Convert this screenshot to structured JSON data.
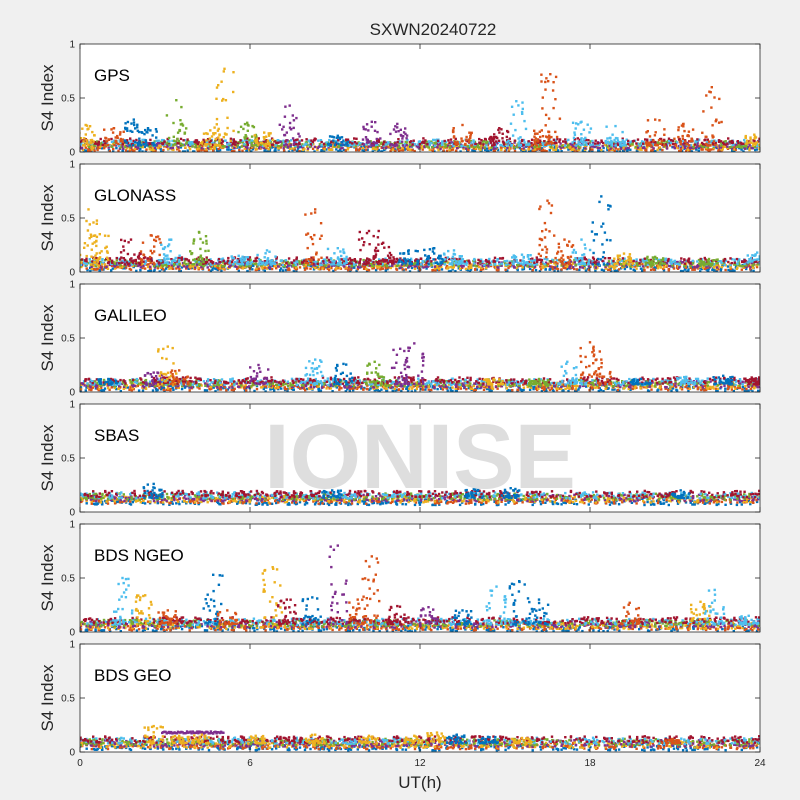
{
  "chart_data": {
    "type": "scatter",
    "title": "SXWN20240722",
    "xlabel": "UT(h)",
    "ylabel": "S4 Index",
    "xlim": [
      0,
      24
    ],
    "ylim": [
      0,
      1
    ],
    "xticks": [
      "0",
      "6",
      "12",
      "18",
      "24"
    ],
    "yticks": [
      "0",
      "0.5",
      "1"
    ],
    "watermark": "IONISE",
    "series_colors": [
      "#0072BD",
      "#D95319",
      "#EDB120",
      "#7E2F8E",
      "#77AC30",
      "#4DBEEE",
      "#A2142F"
    ],
    "panels": [
      {
        "name": "GPS",
        "baseline": 0.06,
        "spikes": [
          [
            0.2,
            0.25,
            2
          ],
          [
            1.2,
            0.22,
            1
          ],
          [
            1.9,
            0.3,
            0
          ],
          [
            2.4,
            0.22,
            0
          ],
          [
            3.4,
            0.48,
            4
          ],
          [
            4.6,
            0.2,
            2
          ],
          [
            5.1,
            0.77,
            2
          ],
          [
            5.9,
            0.27,
            4
          ],
          [
            6.5,
            0.18,
            2
          ],
          [
            7.4,
            0.43,
            3
          ],
          [
            9.1,
            0.15,
            0
          ],
          [
            10.3,
            0.28,
            3
          ],
          [
            11.2,
            0.26,
            3
          ],
          [
            13.5,
            0.25,
            1
          ],
          [
            14.8,
            0.22,
            6
          ],
          [
            15.4,
            0.47,
            5
          ],
          [
            16.3,
            0.2,
            1
          ],
          [
            16.6,
            0.72,
            1
          ],
          [
            17.7,
            0.28,
            5
          ],
          [
            18.9,
            0.24,
            5
          ],
          [
            20.3,
            0.3,
            1
          ],
          [
            21.3,
            0.26,
            1
          ],
          [
            22.3,
            0.6,
            1
          ],
          [
            23.8,
            0.16,
            2
          ]
        ]
      },
      {
        "name": "GLONASS",
        "baseline": 0.07,
        "spikes": [
          [
            0.3,
            0.58,
            2
          ],
          [
            0.7,
            0.35,
            2
          ],
          [
            1.8,
            0.3,
            6
          ],
          [
            2.5,
            0.34,
            1
          ],
          [
            3.2,
            0.3,
            5
          ],
          [
            4.2,
            0.37,
            4
          ],
          [
            5.6,
            0.15,
            5
          ],
          [
            6.6,
            0.2,
            5
          ],
          [
            8.3,
            0.58,
            1
          ],
          [
            9.1,
            0.22,
            5
          ],
          [
            10.2,
            0.38,
            6
          ],
          [
            10.7,
            0.27,
            6
          ],
          [
            11.6,
            0.2,
            0
          ],
          [
            12.5,
            0.22,
            0
          ],
          [
            13.2,
            0.2,
            5
          ],
          [
            15.6,
            0.16,
            5
          ],
          [
            16.5,
            0.66,
            1
          ],
          [
            17.1,
            0.3,
            1
          ],
          [
            17.7,
            0.3,
            5
          ],
          [
            18.4,
            0.7,
            0
          ],
          [
            19.2,
            0.17,
            2
          ],
          [
            20.3,
            0.14,
            4
          ],
          [
            22.2,
            0.12,
            4
          ],
          [
            23.9,
            0.18,
            5
          ]
        ]
      },
      {
        "name": "GALILEO",
        "baseline": 0.07,
        "spikes": [
          [
            1.0,
            0.12,
            0
          ],
          [
            2.6,
            0.18,
            3
          ],
          [
            3.1,
            0.42,
            2
          ],
          [
            3.5,
            0.2,
            1
          ],
          [
            6.3,
            0.25,
            3
          ],
          [
            8.3,
            0.3,
            5
          ],
          [
            9.3,
            0.26,
            0
          ],
          [
            10.4,
            0.28,
            4
          ],
          [
            11.3,
            0.4,
            3
          ],
          [
            11.8,
            0.45,
            3
          ],
          [
            14.6,
            0.12,
            2
          ],
          [
            16.2,
            0.12,
            4
          ],
          [
            17.2,
            0.28,
            5
          ],
          [
            18.0,
            0.46,
            1
          ],
          [
            18.4,
            0.3,
            1
          ],
          [
            19.8,
            0.12,
            0
          ],
          [
            21.4,
            0.14,
            5
          ],
          [
            22.7,
            0.15,
            0
          ],
          [
            23.8,
            0.12,
            6
          ]
        ]
      },
      {
        "name": "SBAS",
        "baseline": 0.13,
        "spikes": [
          [
            2.6,
            0.26,
            0
          ],
          [
            8.9,
            0.2,
            0
          ],
          [
            13.9,
            0.21,
            0
          ],
          [
            15.2,
            0.22,
            0
          ],
          [
            21.2,
            0.2,
            0
          ]
        ]
      },
      {
        "name": "BDS NGEO",
        "baseline": 0.07,
        "spikes": [
          [
            1.5,
            0.5,
            5
          ],
          [
            2.3,
            0.34,
            2
          ],
          [
            3.1,
            0.2,
            1
          ],
          [
            4.7,
            0.53,
            0
          ],
          [
            5.2,
            0.2,
            1
          ],
          [
            6.8,
            0.6,
            2
          ],
          [
            7.3,
            0.3,
            6
          ],
          [
            8.2,
            0.32,
            0
          ],
          [
            9.1,
            0.8,
            3
          ],
          [
            9.8,
            0.3,
            1
          ],
          [
            10.3,
            0.7,
            1
          ],
          [
            11.2,
            0.24,
            6
          ],
          [
            12.3,
            0.23,
            3
          ],
          [
            13.5,
            0.2,
            0
          ],
          [
            14.7,
            0.42,
            5
          ],
          [
            15.5,
            0.47,
            0
          ],
          [
            16.2,
            0.3,
            0
          ],
          [
            19.4,
            0.27,
            1
          ],
          [
            21.9,
            0.28,
            2
          ],
          [
            22.4,
            0.39,
            5
          ],
          [
            23.6,
            0.15,
            5
          ]
        ]
      },
      {
        "name": "BDS GEO",
        "baseline": 0.08,
        "segments": [
          [
            2.9,
            5.1,
            0.18,
            3
          ]
        ],
        "spikes": [
          [
            2.6,
            0.24,
            2
          ],
          [
            3.5,
            0.15,
            2
          ],
          [
            4.3,
            0.16,
            2
          ],
          [
            6.2,
            0.15,
            2
          ],
          [
            8.3,
            0.16,
            2
          ],
          [
            10.2,
            0.15,
            2
          ],
          [
            11.8,
            0.15,
            2
          ],
          [
            12.6,
            0.18,
            2
          ],
          [
            13.3,
            0.16,
            0
          ],
          [
            14.4,
            0.14,
            0
          ],
          [
            15.6,
            0.13,
            2
          ],
          [
            20.9,
            0.12,
            1
          ]
        ]
      }
    ]
  }
}
